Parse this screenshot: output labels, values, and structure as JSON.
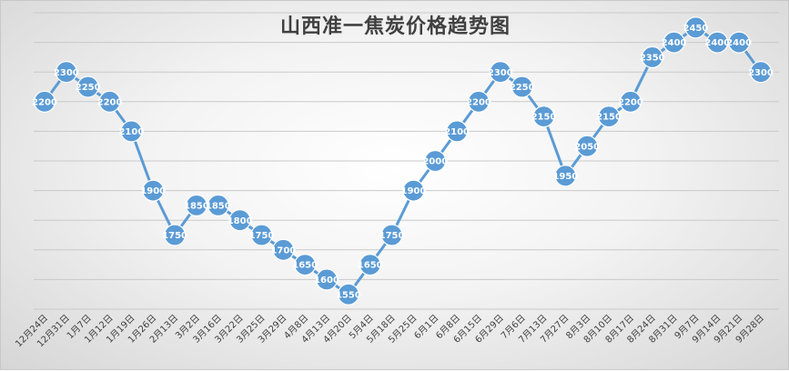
{
  "chart_data": {
    "type": "line",
    "title": "山西准一焦炭价格趋势图",
    "xlabel": "",
    "ylabel": "",
    "ylim": [
      1500,
      2500
    ],
    "grid": true,
    "legend": "none",
    "line_color": "#5b9bd5",
    "categories": [
      "12月24日",
      "12月31日",
      "1月7日",
      "1月12日",
      "1月19日",
      "1月26日",
      "2月13日",
      "3月2日",
      "3月16日",
      "3月22日",
      "3月25日",
      "3月29日",
      "4月8日",
      "4月13日",
      "4月20日",
      "5月4日",
      "5月18日",
      "5月25日",
      "6月1日",
      "6月8日",
      "6月15日",
      "6月29日",
      "7月6日",
      "7月13日",
      "7月27日",
      "8月3日",
      "8月10日",
      "8月17日",
      "8月24日",
      "8月31日",
      "9月7日",
      "9月14日",
      "9月21日",
      "9月28日"
    ],
    "values": [
      2200,
      2300,
      2250,
      2200,
      2100,
      1900,
      1750,
      1850,
      1850,
      1800,
      1750,
      1700,
      1650,
      1600,
      1550,
      1650,
      1750,
      1900,
      2000,
      2100,
      2200,
      2300,
      2250,
      2150,
      1950,
      2050,
      2150,
      2200,
      2350,
      2400,
      2450,
      2400,
      2400,
      2300
    ]
  }
}
